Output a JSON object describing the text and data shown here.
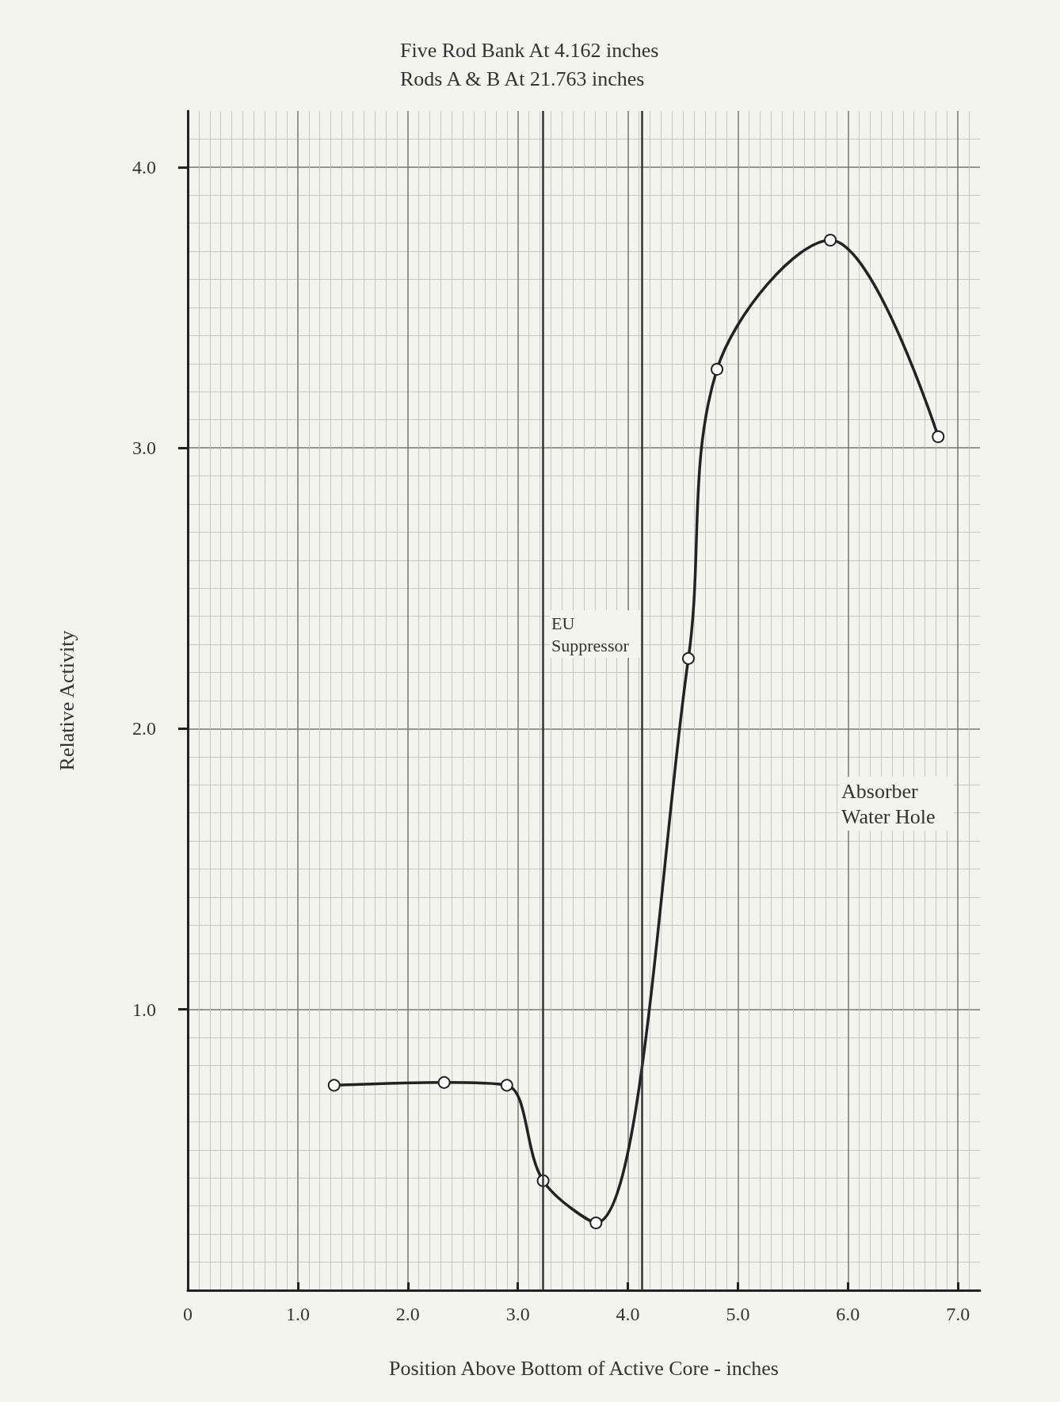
{
  "chart_data": {
    "type": "line",
    "title": "Five Rod Bank At 4.162 inches",
    "subtitle": "Rods A & B At 21.763 inches",
    "xlabel": "Position Above Bottom of Active Core - inches",
    "ylabel": "Relative Activity",
    "x": [
      1.33,
      2.33,
      2.9,
      3.23,
      3.71,
      4.55,
      4.81,
      5.84,
      6.82
    ],
    "series": [
      {
        "color": "#222222",
        "values": [
          0.73,
          0.74,
          0.73,
          0.39,
          0.24,
          2.25,
          3.28,
          3.74,
          3.04
        ]
      }
    ],
    "xlim": [
      0,
      7.2
    ],
    "ylim": [
      0,
      4.2
    ],
    "xticks": [
      {
        "value": 0,
        "label": "0"
      },
      {
        "value": 1,
        "label": "1.0"
      },
      {
        "value": 2,
        "label": "2.0"
      },
      {
        "value": 3,
        "label": "3.0"
      },
      {
        "value": 4,
        "label": "4.0"
      },
      {
        "value": 5,
        "label": "5.0"
      },
      {
        "value": 6,
        "label": "6.0"
      },
      {
        "value": 7,
        "label": "7.0"
      }
    ],
    "yticks": [
      {
        "value": 1,
        "label": "1.0"
      },
      {
        "value": 2,
        "label": "2.0"
      },
      {
        "value": 3,
        "label": "3.0"
      },
      {
        "value": 4,
        "label": "4.0"
      }
    ],
    "ref_lines": [
      {
        "axis": "x",
        "value": 3.23,
        "color": "#333333"
      },
      {
        "axis": "x",
        "value": 4.13,
        "color": "#333333"
      }
    ],
    "annotations": [
      "EU Suppressor",
      "Absorber Water Hole"
    ],
    "grid": true,
    "marker": "circle",
    "line_style": "solid"
  }
}
